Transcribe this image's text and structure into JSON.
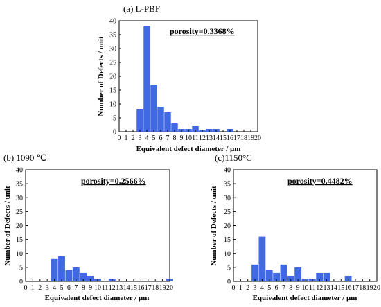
{
  "colors": {
    "bar": "#4169e1",
    "axis": "#000000"
  },
  "chart_data": [
    {
      "type": "bar",
      "title": "(a) L-PBF",
      "annotation": "porosity=0.3368%",
      "xlabel": "Equivalent defect diameter / μm",
      "ylabel": "Number of Defects / unit",
      "xlim": [
        0,
        20
      ],
      "ylim": [
        0,
        40
      ],
      "x_ticks": [
        0,
        1,
        2,
        3,
        4,
        5,
        6,
        7,
        8,
        9,
        10,
        11,
        12,
        13,
        14,
        15,
        16,
        17,
        18,
        19,
        20
      ],
      "y_ticks": [
        0,
        5,
        10,
        15,
        20,
        25,
        30,
        35,
        40
      ],
      "bars": [
        {
          "x": 3,
          "value": 8
        },
        {
          "x": 4,
          "value": 38
        },
        {
          "x": 5,
          "value": 17
        },
        {
          "x": 6,
          "value": 9
        },
        {
          "x": 7,
          "value": 7
        },
        {
          "x": 8,
          "value": 3
        },
        {
          "x": 9,
          "value": 1
        },
        {
          "x": 10,
          "value": 1
        },
        {
          "x": 11,
          "value": 2
        },
        {
          "x": 12,
          "value": 0.5
        },
        {
          "x": 13,
          "value": 1
        },
        {
          "x": 14,
          "value": 1
        },
        {
          "x": 16,
          "value": 1
        }
      ]
    },
    {
      "type": "bar",
      "title": "(b) 1090 ℃",
      "annotation": "porosity=0.2566%",
      "xlabel": "Equivalent defect diameter / μm",
      "ylabel": "Number of Defects / unit",
      "xlim": [
        0,
        20
      ],
      "ylim": [
        0,
        40
      ],
      "x_ticks": [
        0,
        1,
        2,
        3,
        4,
        5,
        6,
        7,
        8,
        9,
        10,
        11,
        12,
        13,
        14,
        15,
        16,
        17,
        18,
        19,
        20
      ],
      "y_ticks": [
        0,
        5,
        10,
        15,
        20,
        25,
        30,
        35,
        40
      ],
      "bars": [
        {
          "x": 4,
          "value": 8
        },
        {
          "x": 5,
          "value": 9
        },
        {
          "x": 6,
          "value": 4
        },
        {
          "x": 7,
          "value": 5
        },
        {
          "x": 8,
          "value": 3
        },
        {
          "x": 9,
          "value": 2
        },
        {
          "x": 10,
          "value": 1
        },
        {
          "x": 12,
          "value": 1
        },
        {
          "x": 20,
          "value": 1
        }
      ]
    },
    {
      "type": "bar",
      "title": "(c)1150°C",
      "annotation": "porosity=0.4482%",
      "xlabel": "Equivalent defect diameter / μm",
      "ylabel": "Number of Defects / unit",
      "xlim": [
        0,
        20
      ],
      "ylim": [
        0,
        40
      ],
      "x_ticks": [
        0,
        1,
        2,
        3,
        4,
        5,
        6,
        7,
        8,
        9,
        10,
        11,
        12,
        13,
        14,
        15,
        16,
        17,
        18,
        19,
        20
      ],
      "y_ticks": [
        0,
        5,
        10,
        15,
        20,
        25,
        30,
        35,
        40
      ],
      "bars": [
        {
          "x": 3,
          "value": 6
        },
        {
          "x": 4,
          "value": 16
        },
        {
          "x": 5,
          "value": 4
        },
        {
          "x": 6,
          "value": 3
        },
        {
          "x": 7,
          "value": 6
        },
        {
          "x": 8,
          "value": 2
        },
        {
          "x": 9,
          "value": 5
        },
        {
          "x": 10,
          "value": 1
        },
        {
          "x": 11,
          "value": 1
        },
        {
          "x": 12,
          "value": 3
        },
        {
          "x": 13,
          "value": 3
        },
        {
          "x": 16,
          "value": 2
        }
      ]
    }
  ]
}
